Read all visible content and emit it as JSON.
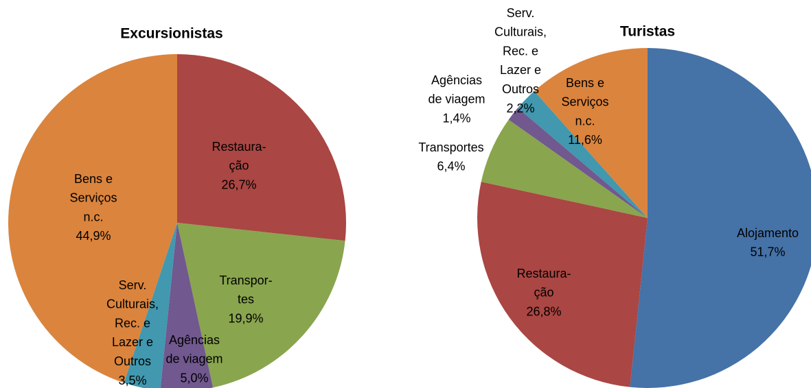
{
  "chart_data": [
    {
      "type": "pie",
      "title": "Excursionistas",
      "categories": [
        [
          "Restaura-",
          "ção"
        ],
        [
          "Transpor-",
          "tes"
        ],
        [
          "Agências",
          "de viagem"
        ],
        [
          "Serv.",
          "Culturais,",
          "Rec. e",
          "Lazer e",
          "Outros"
        ],
        [
          "Bens e",
          "Serviços",
          "n.c."
        ]
      ],
      "values": [
        26.7,
        19.9,
        5.0,
        3.5,
        44.9
      ],
      "value_labels": [
        "26,7%",
        "19,9%",
        "5,0%",
        "3,5%",
        "44,9%"
      ],
      "colors": [
        "#aa4643",
        "#89a54e",
        "#71588f",
        "#4198af",
        "#db843d"
      ]
    },
    {
      "type": "pie",
      "title": "Turistas",
      "categories": [
        [
          "Alojamento"
        ],
        [
          "Restaura-",
          "ção"
        ],
        [
          "Transportes"
        ],
        [
          "Agências",
          "de viagem"
        ],
        [
          "Serv.",
          "Culturais,",
          "Rec. e",
          "Lazer e",
          "Outros"
        ],
        [
          "Bens e",
          "Serviços",
          "n.c."
        ]
      ],
      "values": [
        51.7,
        26.8,
        6.4,
        1.4,
        2.2,
        11.6
      ],
      "value_labels": [
        "51,7%",
        "26,8%",
        "6,4%",
        "1,4%",
        "2,2%",
        "11,6%"
      ],
      "colors": [
        "#4572a7",
        "#aa4643",
        "#89a54e",
        "#71588f",
        "#4198af",
        "#db843d"
      ]
    }
  ]
}
